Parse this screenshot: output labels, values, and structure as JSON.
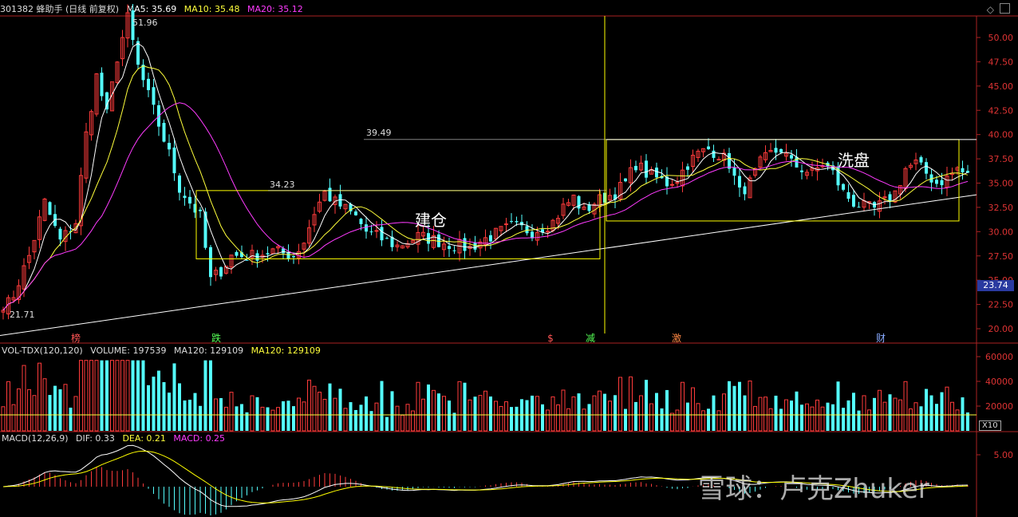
{
  "header": {
    "title": "301382 蜂助手 (日线 前复权)",
    "ma5": "MA5: 35.69",
    "ma10": "MA10: 35.48",
    "ma20": "MA20: 35.12"
  },
  "volume_header": {
    "title": "VOL-TDX(120,120)",
    "volume": "VOLUME: 197539",
    "ma120a": "MA120: 129109",
    "ma120b": "MA120: 129109"
  },
  "macd_header": {
    "title": "MACD(12,26,9)",
    "dif": "DIF: 0.33",
    "dea": "DEA: 0.21",
    "macd": "MACD: 0.25"
  },
  "price_axis_ticks": [
    "50.00",
    "47.50",
    "45.00",
    "42.50",
    "40.00",
    "37.50",
    "35.00",
    "32.50",
    "30.00",
    "27.50",
    "25.00",
    "22.50",
    "20.00"
  ],
  "current_price_tag": "23.74",
  "volume_axis_ticks": [
    "60000",
    "40000",
    "20000"
  ],
  "volume_unit": "X10",
  "macd_axis_ticks": [
    "5.00"
  ],
  "annotations": {
    "high": "51.96",
    "low": "21.71",
    "level1": "34.23",
    "level2": "39.49",
    "phase1": "建仓",
    "phase2": "洗盘"
  },
  "event_markers": [
    "榜",
    "跌",
    "$",
    "减",
    "激",
    "财"
  ],
  "watermark": "雪球：卢克Zhuker",
  "colors": {
    "up": "#ff3b3b",
    "down": "#54ffff",
    "ma5": "#ffffff",
    "ma10": "#ffff3b",
    "ma20": "#ff3bff",
    "box": "#ffff00",
    "macd_dea": "#ffff00",
    "macd_dif": "#ffffff"
  },
  "chart_data": {
    "type": "candlestick",
    "ylim": [
      19,
      52
    ],
    "key_points": [
      {
        "x": 0,
        "y": 21.71
      },
      {
        "x": 2,
        "y": 23.5
      },
      {
        "x": 5,
        "y": 27.5
      },
      {
        "x": 8,
        "y": 33
      },
      {
        "x": 11,
        "y": 29
      },
      {
        "x": 14,
        "y": 31
      },
      {
        "x": 16,
        "y": 40
      },
      {
        "x": 18,
        "y": 46
      },
      {
        "x": 20,
        "y": 42
      },
      {
        "x": 22,
        "y": 48
      },
      {
        "x": 24,
        "y": 51.96
      },
      {
        "x": 26,
        "y": 47
      },
      {
        "x": 28,
        "y": 44
      },
      {
        "x": 30,
        "y": 41
      },
      {
        "x": 32,
        "y": 38
      },
      {
        "x": 34,
        "y": 34.5
      },
      {
        "x": 36,
        "y": 33
      },
      {
        "x": 38,
        "y": 31.5
      },
      {
        "x": 40,
        "y": 25
      },
      {
        "x": 42,
        "y": 26
      },
      {
        "x": 44,
        "y": 27.5
      },
      {
        "x": 48,
        "y": 27.5
      },
      {
        "x": 52,
        "y": 28
      },
      {
        "x": 56,
        "y": 27.5
      },
      {
        "x": 58,
        "y": 29
      },
      {
        "x": 60,
        "y": 32
      },
      {
        "x": 62,
        "y": 34
      },
      {
        "x": 64,
        "y": 33
      },
      {
        "x": 66,
        "y": 32.3
      },
      {
        "x": 68,
        "y": 31.5
      },
      {
        "x": 70,
        "y": 30
      },
      {
        "x": 72,
        "y": 29.5
      },
      {
        "x": 74,
        "y": 29
      },
      {
        "x": 76,
        "y": 28.5
      },
      {
        "x": 78,
        "y": 29
      },
      {
        "x": 80,
        "y": 29.5
      },
      {
        "x": 82,
        "y": 29.3
      },
      {
        "x": 84,
        "y": 29
      },
      {
        "x": 86,
        "y": 28.7
      },
      {
        "x": 88,
        "y": 28.5
      },
      {
        "x": 90,
        "y": 28.3
      },
      {
        "x": 92,
        "y": 29
      },
      {
        "x": 94,
        "y": 29.5
      },
      {
        "x": 96,
        "y": 30
      },
      {
        "x": 98,
        "y": 30.5
      },
      {
        "x": 100,
        "y": 30.3
      },
      {
        "x": 102,
        "y": 30
      },
      {
        "x": 104,
        "y": 30.5
      },
      {
        "x": 106,
        "y": 31
      },
      {
        "x": 108,
        "y": 32.5
      },
      {
        "x": 110,
        "y": 33.5
      },
      {
        "x": 112,
        "y": 32
      },
      {
        "x": 114,
        "y": 33
      },
      {
        "x": 116,
        "y": 33.5
      },
      {
        "x": 118,
        "y": 34
      },
      {
        "x": 120,
        "y": 35
      },
      {
        "x": 122,
        "y": 37
      },
      {
        "x": 124,
        "y": 36
      },
      {
        "x": 126,
        "y": 35.5
      },
      {
        "x": 128,
        "y": 35
      },
      {
        "x": 130,
        "y": 35.5
      },
      {
        "x": 132,
        "y": 37
      },
      {
        "x": 134,
        "y": 38
      },
      {
        "x": 136,
        "y": 38.5
      },
      {
        "x": 138,
        "y": 38
      },
      {
        "x": 140,
        "y": 37
      },
      {
        "x": 142,
        "y": 34
      },
      {
        "x": 144,
        "y": 35
      },
      {
        "x": 146,
        "y": 37
      },
      {
        "x": 148,
        "y": 38
      },
      {
        "x": 150,
        "y": 38.5
      },
      {
        "x": 152,
        "y": 37
      },
      {
        "x": 154,
        "y": 36.5
      },
      {
        "x": 156,
        "y": 36
      },
      {
        "x": 158,
        "y": 37
      },
      {
        "x": 160,
        "y": 36
      },
      {
        "x": 162,
        "y": 34
      },
      {
        "x": 164,
        "y": 33
      },
      {
        "x": 166,
        "y": 32.5
      },
      {
        "x": 168,
        "y": 32.3
      },
      {
        "x": 170,
        "y": 33
      },
      {
        "x": 172,
        "y": 34
      },
      {
        "x": 174,
        "y": 36.5
      },
      {
        "x": 176,
        "y": 37
      },
      {
        "x": 178,
        "y": 36
      },
      {
        "x": 180,
        "y": 35
      },
      {
        "x": 182,
        "y": 35.5
      },
      {
        "x": 184,
        "y": 36.5
      },
      {
        "x": 186,
        "y": 35.7
      }
    ],
    "volume_max": 60000,
    "macd_range": [
      -5,
      7
    ]
  }
}
